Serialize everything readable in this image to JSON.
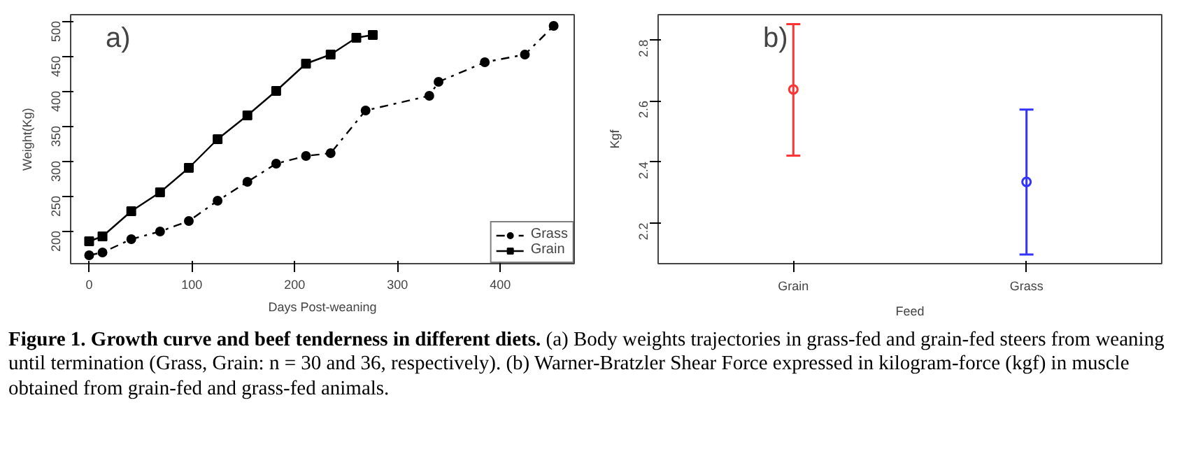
{
  "chart_data": [
    {
      "type": "line",
      "title": "Figure 1.  Growth curve and beef tenderness in different diets.",
      "subtitle": "(a) Body weights trajectories in grass-fed and grain-fed steers from weaning until termination (Grass, Grain: n = 30 and 36, respectively). (b) Warner-Bratzler Shear Force expressed in kilogram-force (kgf) in muscle obtained from grain-fed and grass-fed animals.",
      "xlabel": "Days Post-weaning",
      "ylabel": "Weight(Kg)",
      "annotations": [
        "a)"
      ],
      "xlim": [
        -18,
        472
      ],
      "ylim": [
        153,
        509
      ],
      "xticks": [
        0,
        100,
        200,
        300,
        400
      ],
      "yticks": [
        200,
        250,
        300,
        350,
        400,
        450,
        500
      ],
      "grid": false,
      "legend": "bottom right",
      "series": [
        {
          "name": "Grass",
          "color": "#000000",
          "marker": "circle",
          "line_style": "dashdot",
          "x": [
            0,
            13,
            41,
            69,
            97,
            125,
            154,
            182,
            211,
            235,
            269,
            331,
            340,
            385,
            424,
            452
          ],
          "values": [
            165,
            169,
            188,
            199,
            214,
            243,
            270,
            296,
            307,
            311,
            372,
            393,
            413,
            441,
            452,
            493
          ]
        },
        {
          "name": "Grain",
          "color": "#000000",
          "marker": "square",
          "line_style": "solid",
          "x": [
            0,
            13,
            41,
            69,
            97,
            125,
            154,
            182,
            211,
            235,
            260,
            276
          ],
          "values": [
            185,
            192,
            228,
            255,
            290,
            331,
            365,
            400,
            439,
            452,
            476,
            480
          ]
        }
      ]
    },
    {
      "type": "scatter",
      "xlabel": "Feed",
      "ylabel": "Kgf",
      "annotations": [
        "b)"
      ],
      "categories": [
        "Grain",
        "Grass"
      ],
      "values": [
        2.637,
        2.334
      ],
      "errors": [
        [
          2.42,
          2.851
        ],
        [
          2.096,
          2.571
        ]
      ],
      "colors": [
        "#ff3333",
        "#3333ff"
      ],
      "marker": "circle",
      "ylim": [
        2.066,
        2.882
      ],
      "yticks": [
        2.2,
        2.4,
        2.6,
        2.8
      ],
      "grid": false
    }
  ]
}
